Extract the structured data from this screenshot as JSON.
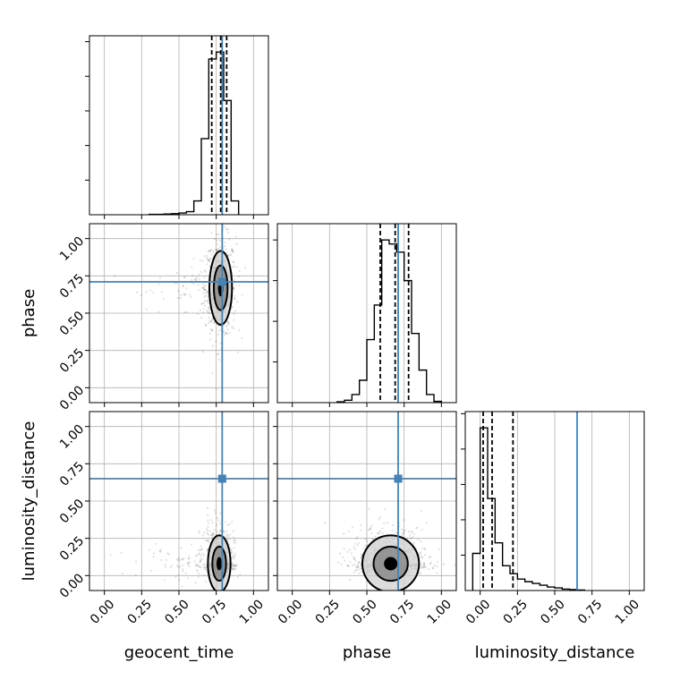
{
  "colors": {
    "truth": "#4682b4",
    "hist": "#000000",
    "grid": "#b0b0b0",
    "density_dark": "#000000",
    "density_mid": "#8a8a8a",
    "density_light": "#d0d0d0"
  },
  "chart_data": {
    "type": "corner",
    "parameters": [
      "geocent_time",
      "phase",
      "luminosity_distance"
    ],
    "axis_range": [
      -0.1,
      1.1
    ],
    "tick_values": [
      0.0,
      0.25,
      0.5,
      0.75,
      1.0
    ],
    "tick_labels": [
      "0.00",
      "0.25",
      "0.50",
      "0.75",
      "1.00"
    ],
    "grid": true,
    "truths": {
      "geocent_time": 0.79,
      "phase": 0.71,
      "luminosity_distance": 0.65
    },
    "histograms": [
      {
        "parameter": "geocent_time",
        "bin_edges": [
          0.3,
          0.35,
          0.4,
          0.45,
          0.5,
          0.55,
          0.6,
          0.65,
          0.7,
          0.75,
          0.8,
          0.85,
          0.9
        ],
        "counts": [
          1,
          1,
          2,
          3,
          5,
          9,
          40,
          220,
          450,
          470,
          330,
          40
        ],
        "quantiles": [
          0.72,
          0.78,
          0.82
        ]
      },
      {
        "parameter": "phase",
        "bin_edges": [
          0.3,
          0.35,
          0.4,
          0.45,
          0.5,
          0.55,
          0.6,
          0.65,
          0.7,
          0.75,
          0.8,
          0.85,
          0.9,
          0.95,
          1.0
        ],
        "counts": [
          2,
          6,
          20,
          55,
          155,
          240,
          400,
          390,
          370,
          300,
          170,
          80,
          20,
          3
        ],
        "quantiles": [
          0.59,
          0.69,
          0.78
        ]
      },
      {
        "parameter": "luminosity_distance",
        "bin_edges": [
          -0.05,
          0.0,
          0.05,
          0.1,
          0.15,
          0.2,
          0.25,
          0.3,
          0.35,
          0.4,
          0.45,
          0.5,
          0.55,
          0.6,
          0.65,
          0.7
        ],
        "counts": [
          210,
          920,
          520,
          270,
          140,
          95,
          65,
          50,
          40,
          30,
          20,
          15,
          8,
          5,
          3
        ],
        "quantiles": [
          0.02,
          0.08,
          0.22
        ]
      }
    ],
    "pairs": [
      {
        "x": "geocent_time",
        "y": "phase",
        "center": [
          0.78,
          0.67
        ],
        "spread": [
          0.04,
          0.13
        ],
        "tail": "left"
      },
      {
        "x": "geocent_time",
        "y": "luminosity_distance",
        "center": [
          0.77,
          0.08
        ],
        "spread": [
          0.04,
          0.1
        ],
        "tail": "left"
      },
      {
        "x": "phase",
        "y": "luminosity_distance",
        "center": [
          0.66,
          0.08
        ],
        "spread": [
          0.1,
          0.1
        ],
        "tail": "none"
      }
    ]
  }
}
